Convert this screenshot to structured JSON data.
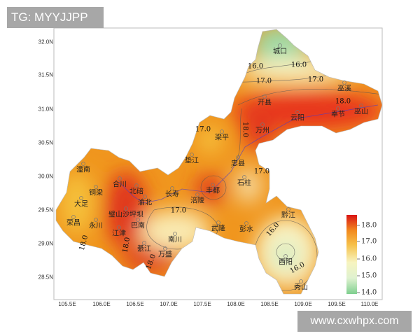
{
  "overlay": {
    "top_left": "TG: MYYJJPP",
    "bottom_right": "www.cxwhpx.com"
  },
  "axes": {
    "y_ticks": [
      "32.0N",
      "31.5N",
      "31.0N",
      "30.5N",
      "30.0N",
      "29.5N",
      "29.0N",
      "28.5N"
    ],
    "x_ticks": [
      "105.5E",
      "106.0E",
      "106.5E",
      "107.0E",
      "107.5E",
      "108.0E",
      "108.5E",
      "109.0E",
      "109.5E",
      "110.0E"
    ]
  },
  "cities": [
    "城口",
    "巫溪",
    "开县",
    "云阳",
    "奉节",
    "巫山",
    "万州",
    "梁平",
    "垫江",
    "忠县",
    "石柱",
    "丰都",
    "长寿",
    "涪陵",
    "潼南",
    "合川",
    "铜梁",
    "北碚",
    "渝北",
    "大足",
    "璧山沙坪坝",
    "荣昌",
    "永川",
    "江津",
    "巴南",
    "武隆",
    "彭水",
    "黔江",
    "南川",
    "綦江",
    "万盛",
    "酉阳",
    "秀山"
  ],
  "contour_labels": [
    "16.0",
    "16.0",
    "17.0",
    "17.0",
    "18.0",
    "18.0",
    "17.0",
    "17.0",
    "17.0",
    "18.0",
    "18.0",
    "18.0",
    "16.0",
    "16.0"
  ],
  "legend": {
    "ticks": [
      "18.0",
      "17.0",
      "16.0",
      "15.0",
      "14.0"
    ],
    "range": [
      14,
      18.5
    ],
    "colors": [
      "#7fcf8f",
      "#f7f4c0",
      "#f6c14a",
      "#f28a1e",
      "#e0301a",
      "#d91414"
    ]
  }
}
